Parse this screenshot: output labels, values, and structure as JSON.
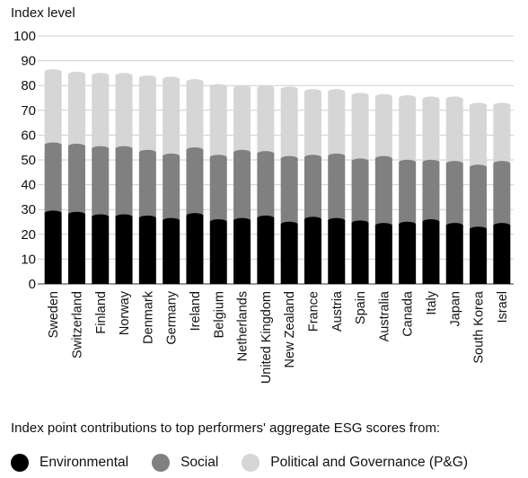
{
  "chart_data": {
    "type": "bar",
    "stacked": true,
    "ylabel": "Index level",
    "ylim": [
      0,
      100
    ],
    "yticks": [
      0,
      10,
      20,
      30,
      40,
      50,
      60,
      70,
      80,
      90,
      100
    ],
    "grid": true,
    "categories": [
      "Sweden",
      "Switzerland",
      "Finland",
      "Norway",
      "Denmark",
      "Germany",
      "Ireland",
      "Belgium",
      "Netherlands",
      "United Kingdom",
      "New Zealand",
      "France",
      "Austria",
      "Spain",
      "Australia",
      "Canada",
      "Italy",
      "Japan",
      "South Korea",
      "Israel"
    ],
    "series": [
      {
        "name": "Environmental",
        "color": "#000000",
        "values": [
          28.5,
          28,
          27,
          27,
          26.5,
          25.5,
          27.5,
          25,
          25.5,
          26.5,
          24,
          26,
          25.5,
          24.5,
          23.5,
          24,
          25,
          23.5,
          22,
          23.5
        ]
      },
      {
        "name": "Social",
        "color": "#808080",
        "values": [
          27.5,
          27.5,
          27.5,
          27.5,
          26.5,
          26,
          26.5,
          26,
          27.5,
          26,
          26.5,
          25,
          26,
          25,
          27,
          25,
          24,
          25,
          25,
          25
        ]
      },
      {
        "name": "Political and Governance (P&G)",
        "color": "#d6d6d6",
        "values": [
          29.5,
          29,
          29.5,
          29.5,
          30,
          31,
          27.5,
          28.5,
          26,
          26.5,
          28,
          26.5,
          26,
          26.5,
          25,
          26,
          25.5,
          26,
          25,
          23.5
        ]
      }
    ],
    "legend_title": "Index point contributions to top performers' aggregate ESG scores from:",
    "legend_position": "bottom"
  }
}
